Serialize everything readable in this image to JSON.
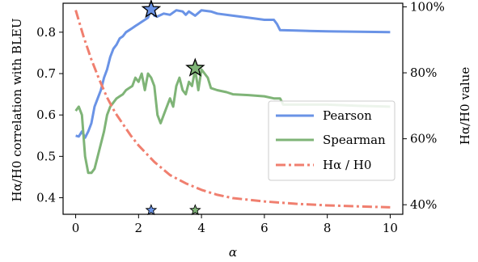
{
  "chart_data": {
    "type": "line",
    "xlabel": "α",
    "ylabel_left": "Hα/H0 correlation with BLEU",
    "ylabel_right": "Hα/H0 value",
    "xlim": [
      -0.4,
      10.4
    ],
    "ylim_left": [
      0.36,
      0.87
    ],
    "ylim_right": [
      37.1,
      101.1
    ],
    "x_ticks": [
      0,
      2,
      4,
      6,
      8,
      10
    ],
    "y_ticks_left": [
      0.4,
      0.5,
      0.6,
      0.7,
      0.8
    ],
    "y_ticks_right": [
      40,
      60,
      80,
      100
    ],
    "y_tick_suffix_right": "%",
    "legend_position": "center-right",
    "series": [
      {
        "name": "Pearson",
        "axis": "left",
        "color": "#6a93e6",
        "style": "solid",
        "x": [
          0,
          0.1,
          0.2,
          0.3,
          0.4,
          0.5,
          0.6,
          0.7,
          0.8,
          0.9,
          1.0,
          1.1,
          1.2,
          1.3,
          1.4,
          1.5,
          1.6,
          1.7,
          1.8,
          1.9,
          2.0,
          2.1,
          2.2,
          2.3,
          2.4,
          2.5,
          2.6,
          2.8,
          3.0,
          3.2,
          3.4,
          3.5,
          3.6,
          3.8,
          4.0,
          4.3,
          4.5,
          5.0,
          5.5,
          6.0,
          6.3,
          6.4,
          6.5,
          7.0,
          8.0,
          9.0,
          10.0
        ],
        "y": [
          0.55,
          0.548,
          0.56,
          0.545,
          0.56,
          0.58,
          0.62,
          0.64,
          0.66,
          0.69,
          0.71,
          0.74,
          0.76,
          0.77,
          0.785,
          0.79,
          0.8,
          0.805,
          0.81,
          0.815,
          0.82,
          0.825,
          0.83,
          0.835,
          0.855,
          0.84,
          0.838,
          0.845,
          0.842,
          0.853,
          0.85,
          0.842,
          0.85,
          0.84,
          0.853,
          0.85,
          0.845,
          0.84,
          0.835,
          0.83,
          0.83,
          0.82,
          0.805,
          0.804,
          0.802,
          0.801,
          0.8
        ]
      },
      {
        "name": "Spearman",
        "axis": "left",
        "color": "#7fb477",
        "style": "solid",
        "x": [
          0,
          0.1,
          0.2,
          0.3,
          0.4,
          0.5,
          0.6,
          0.7,
          0.8,
          0.9,
          1.0,
          1.1,
          1.2,
          1.3,
          1.4,
          1.5,
          1.6,
          1.7,
          1.8,
          1.9,
          2.0,
          2.1,
          2.2,
          2.3,
          2.4,
          2.5,
          2.6,
          2.7,
          2.8,
          2.9,
          3.0,
          3.1,
          3.2,
          3.3,
          3.4,
          3.5,
          3.6,
          3.7,
          3.8,
          3.9,
          4.0,
          4.1,
          4.2,
          4.3,
          4.5,
          4.8,
          5.0,
          5.5,
          6.0,
          6.3,
          6.5,
          6.6,
          7.0,
          8.0,
          9.0,
          10.0
        ],
        "y": [
          0.61,
          0.62,
          0.6,
          0.5,
          0.46,
          0.46,
          0.47,
          0.5,
          0.53,
          0.56,
          0.6,
          0.62,
          0.63,
          0.64,
          0.645,
          0.65,
          0.66,
          0.665,
          0.67,
          0.69,
          0.68,
          0.7,
          0.66,
          0.7,
          0.69,
          0.67,
          0.6,
          0.58,
          0.6,
          0.62,
          0.64,
          0.62,
          0.67,
          0.69,
          0.66,
          0.65,
          0.68,
          0.67,
          0.71,
          0.66,
          0.71,
          0.7,
          0.69,
          0.665,
          0.66,
          0.655,
          0.65,
          0.648,
          0.645,
          0.64,
          0.64,
          0.625,
          0.625,
          0.625,
          0.622,
          0.62
        ]
      },
      {
        "name": "Hα / H0",
        "axis": "right",
        "color": "#f07f6f",
        "style": "dashdot",
        "x": [
          0,
          0.25,
          0.5,
          0.75,
          1.0,
          1.25,
          1.5,
          1.75,
          2.0,
          2.5,
          3.0,
          3.5,
          4.0,
          4.5,
          5.0,
          6.0,
          7.0,
          8.0,
          9.0,
          10.0
        ],
        "y": [
          99,
          91,
          84,
          78,
          72.5,
          68,
          64.5,
          61,
          58,
          53,
          49,
          46.5,
          44.5,
          43,
          42,
          41,
          40.3,
          39.8,
          39.5,
          39.2
        ]
      }
    ],
    "markers": [
      {
        "series": "Pearson",
        "x": 2.4,
        "y": 0.855,
        "color": "#6a93e6",
        "shape": "star",
        "size": "large"
      },
      {
        "series": "Spearman",
        "x": 3.8,
        "y": 0.713,
        "color": "#7fb477",
        "shape": "star",
        "size": "large"
      },
      {
        "series": "Pearson",
        "x": 2.4,
        "y": 0.37,
        "color": "#6a93e6",
        "shape": "star",
        "size": "small"
      },
      {
        "series": "Spearman",
        "x": 3.8,
        "y": 0.37,
        "color": "#7fb477",
        "shape": "star",
        "size": "small"
      }
    ]
  }
}
